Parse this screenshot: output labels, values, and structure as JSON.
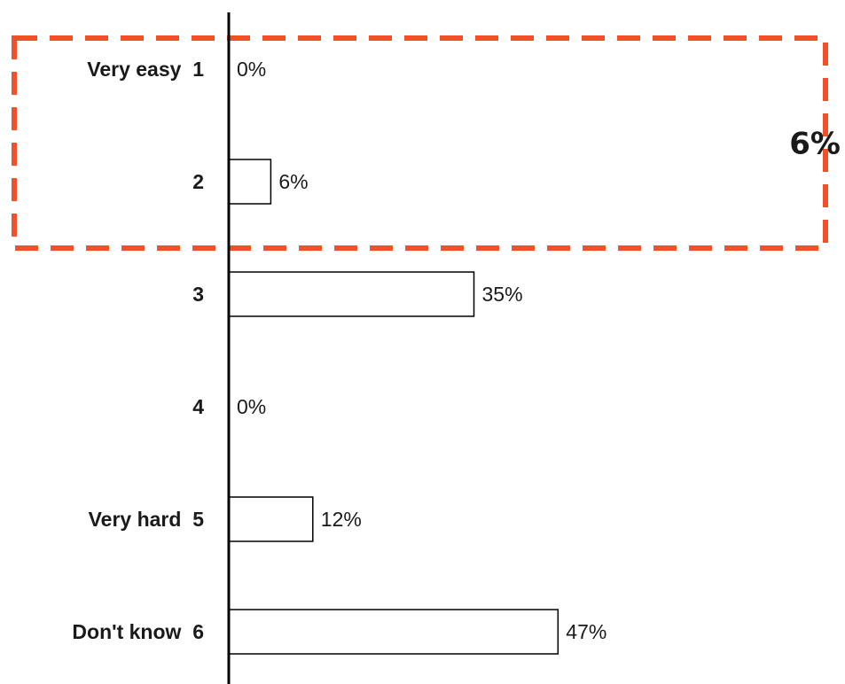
{
  "chart_data": {
    "type": "bar",
    "orientation": "horizontal",
    "categories": [
      "Very easy  1",
      "2",
      "3",
      "4",
      "Very hard  5",
      "Don't know  6"
    ],
    "values": [
      0,
      6,
      35,
      0,
      12,
      47
    ],
    "value_labels": [
      "0%",
      "6%",
      "35%",
      "0%",
      "12%",
      "47%"
    ],
    "xlim": [
      0,
      100
    ],
    "grid": false,
    "legend": "none",
    "bar_fill": "#ffffff",
    "bar_stroke": "#000000",
    "highlight": {
      "categories": [
        "Very easy  1",
        "2"
      ],
      "label": "6%",
      "color": "#f0502a",
      "style": "dashed-box"
    }
  }
}
